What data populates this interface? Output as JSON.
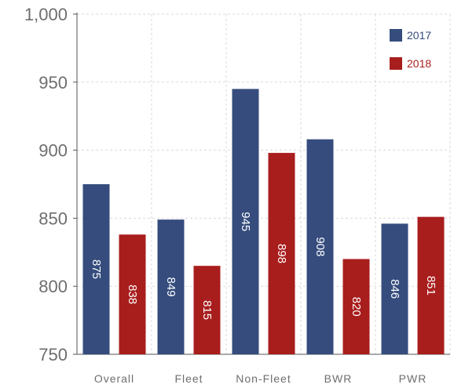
{
  "chart_data": {
    "type": "bar",
    "categories": [
      "Overall",
      "Fleet",
      "Non-Fleet",
      "BWR",
      "PWR"
    ],
    "series": [
      {
        "name": "2017",
        "color": "#354c7d",
        "values": [
          875,
          849,
          945,
          908,
          846
        ]
      },
      {
        "name": "2018",
        "color": "#a81e1d",
        "values": [
          838,
          815,
          898,
          820,
          851
        ]
      }
    ],
    "data_labels": [
      [
        "875",
        "849",
        "945",
        "908",
        "846"
      ],
      [
        "838",
        "815",
        "898",
        "820",
        "851"
      ]
    ],
    "y_ticks": [
      "750",
      "800",
      "850",
      "900",
      "950",
      "1,000"
    ],
    "y_tick_values": [
      750,
      800,
      850,
      900,
      950,
      1000
    ],
    "ylim": [
      750,
      1000
    ],
    "title": "",
    "xlabel": "",
    "ylabel": "",
    "grid": true,
    "legend_position": "top-right",
    "label_rotation": "vertical, inside bars"
  }
}
